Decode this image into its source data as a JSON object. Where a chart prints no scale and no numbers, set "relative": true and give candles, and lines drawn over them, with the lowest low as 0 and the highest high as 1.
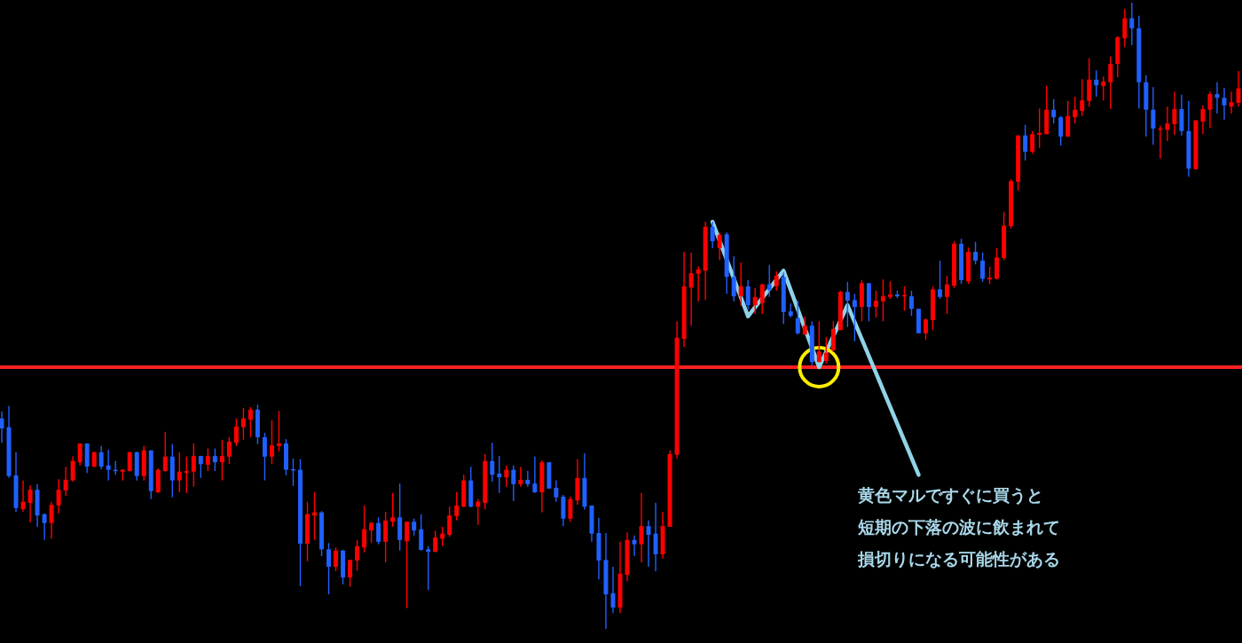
{
  "chart_data": {
    "type": "candlestick",
    "relative": true,
    "categories": [
      null,
      null,
      null,
      null,
      null,
      null,
      null,
      null,
      null,
      null,
      null,
      null,
      null,
      null,
      null,
      null,
      null,
      null,
      null,
      null,
      null,
      null,
      null,
      null,
      null,
      null,
      null,
      null,
      null,
      null,
      null,
      null,
      null,
      null,
      null,
      null,
      null,
      null,
      null,
      null,
      null,
      null,
      null,
      null,
      null,
      null,
      null,
      null,
      null,
      null,
      null,
      null,
      null,
      null,
      null,
      null,
      null,
      null,
      null,
      null,
      null,
      null,
      null,
      null,
      null,
      null,
      null,
      null,
      null,
      null,
      null,
      null,
      null,
      null,
      null,
      null,
      null,
      null,
      null,
      null,
      null,
      null,
      null,
      null,
      null,
      null,
      null,
      null,
      null,
      null,
      null,
      null,
      null,
      null,
      null,
      null,
      null,
      null,
      null,
      null,
      null,
      null,
      null,
      null,
      null,
      null,
      null,
      null,
      null,
      null,
      null,
      null,
      null,
      null,
      null,
      null,
      null,
      null,
      null,
      null,
      null,
      null,
      null,
      null,
      null,
      null,
      null,
      null,
      null,
      null,
      null,
      null,
      null,
      null,
      null,
      null,
      null,
      null,
      null,
      null,
      null,
      null,
      null,
      null,
      null,
      null,
      null,
      null,
      null,
      null,
      null,
      null,
      null,
      null,
      null,
      null,
      null,
      null,
      null,
      null,
      null,
      null,
      null,
      null,
      null,
      null,
      null,
      null,
      null,
      null,
      null,
      null,
      null,
      null,
      null
    ],
    "ohlc": [
      [
        0.336,
        0.347,
        0.297,
        0.32
      ],
      [
        0.322,
        0.356,
        0.241,
        0.244
      ],
      [
        0.245,
        0.282,
        0.187,
        0.193
      ],
      [
        0.191,
        0.237,
        0.187,
        0.203
      ],
      [
        0.201,
        0.229,
        0.17,
        0.222
      ],
      [
        0.222,
        0.231,
        0.163,
        0.181
      ],
      [
        0.183,
        0.184,
        0.142,
        0.169
      ],
      [
        0.169,
        0.203,
        0.144,
        0.198
      ],
      [
        0.197,
        0.239,
        0.184,
        0.222
      ],
      [
        0.221,
        0.259,
        0.212,
        0.238
      ],
      [
        0.237,
        0.275,
        0.235,
        0.268
      ],
      [
        0.266,
        0.296,
        0.261,
        0.296
      ],
      [
        0.296,
        0.296,
        0.249,
        0.259
      ],
      [
        0.259,
        0.283,
        0.258,
        0.282
      ],
      [
        0.282,
        0.292,
        0.255,
        0.259
      ],
      [
        0.261,
        0.286,
        0.237,
        0.254
      ],
      [
        0.254,
        0.268,
        0.246,
        0.252
      ],
      [
        0.251,
        0.255,
        0.237,
        0.254
      ],
      [
        0.252,
        0.283,
        0.251,
        0.282
      ],
      [
        0.282,
        0.283,
        0.237,
        0.244
      ],
      [
        0.244,
        0.292,
        0.237,
        0.285
      ],
      [
        0.285,
        0.285,
        0.207,
        0.22
      ],
      [
        0.218,
        0.256,
        0.217,
        0.254
      ],
      [
        0.252,
        0.314,
        0.251,
        0.275
      ],
      [
        0.275,
        0.295,
        0.21,
        0.237
      ],
      [
        0.237,
        0.282,
        0.218,
        0.251
      ],
      [
        0.249,
        0.275,
        0.217,
        0.252
      ],
      [
        0.251,
        0.296,
        0.227,
        0.276
      ],
      [
        0.276,
        0.276,
        0.241,
        0.263
      ],
      [
        0.262,
        0.288,
        0.252,
        0.276
      ],
      [
        0.276,
        0.288,
        0.252,
        0.266
      ],
      [
        0.266,
        0.302,
        0.237,
        0.276
      ],
      [
        0.275,
        0.306,
        0.263,
        0.299
      ],
      [
        0.297,
        0.336,
        0.292,
        0.323
      ],
      [
        0.322,
        0.353,
        0.302,
        0.336
      ],
      [
        0.334,
        0.354,
        0.306,
        0.35
      ],
      [
        0.35,
        0.358,
        0.295,
        0.306
      ],
      [
        0.306,
        0.313,
        0.237,
        0.275
      ],
      [
        0.275,
        0.333,
        0.263,
        0.293
      ],
      [
        0.292,
        0.348,
        0.283,
        0.296
      ],
      [
        0.296,
        0.303,
        0.245,
        0.254
      ],
      [
        0.255,
        0.272,
        0.228,
        0.254
      ],
      [
        0.254,
        0.271,
        0.068,
        0.136
      ],
      [
        0.136,
        0.203,
        0.108,
        0.183
      ],
      [
        0.181,
        0.218,
        0.142,
        0.186
      ],
      [
        0.186,
        0.188,
        0.116,
        0.127
      ],
      [
        0.127,
        0.137,
        0.055,
        0.099
      ],
      [
        0.099,
        0.13,
        0.092,
        0.125
      ],
      [
        0.125,
        0.126,
        0.071,
        0.082
      ],
      [
        0.082,
        0.11,
        0.067,
        0.11
      ],
      [
        0.109,
        0.142,
        0.093,
        0.132
      ],
      [
        0.13,
        0.197,
        0.122,
        0.159
      ],
      [
        0.157,
        0.171,
        0.137,
        0.169
      ],
      [
        0.169,
        0.178,
        0.135,
        0.139
      ],
      [
        0.139,
        0.187,
        0.106,
        0.173
      ],
      [
        0.171,
        0.217,
        0.163,
        0.178
      ],
      [
        0.178,
        0.232,
        0.125,
        0.142
      ],
      [
        0.14,
        0.171,
        0.033,
        0.171
      ],
      [
        0.171,
        0.176,
        0.149,
        0.157
      ],
      [
        0.159,
        0.183,
        0.125,
        0.126
      ],
      [
        0.127,
        0.132,
        0.062,
        0.123
      ],
      [
        0.123,
        0.157,
        0.122,
        0.146
      ],
      [
        0.144,
        0.163,
        0.132,
        0.152
      ],
      [
        0.15,
        0.195,
        0.147,
        0.181
      ],
      [
        0.18,
        0.218,
        0.173,
        0.197
      ],
      [
        0.195,
        0.246,
        0.194,
        0.237
      ],
      [
        0.237,
        0.259,
        0.194,
        0.195
      ],
      [
        0.195,
        0.207,
        0.166,
        0.203
      ],
      [
        0.201,
        0.279,
        0.191,
        0.268
      ],
      [
        0.268,
        0.297,
        0.235,
        0.246
      ],
      [
        0.248,
        0.276,
        0.217,
        0.242
      ],
      [
        0.242,
        0.261,
        0.227,
        0.254
      ],
      [
        0.254,
        0.261,
        0.204,
        0.231
      ],
      [
        0.231,
        0.259,
        0.227,
        0.238
      ],
      [
        0.238,
        0.252,
        0.227,
        0.231
      ],
      [
        0.232,
        0.275,
        0.217,
        0.218
      ],
      [
        0.218,
        0.269,
        0.186,
        0.266
      ],
      [
        0.266,
        0.266,
        0.224,
        0.224
      ],
      [
        0.225,
        0.237,
        0.203,
        0.21
      ],
      [
        0.211,
        0.214,
        0.164,
        0.176
      ],
      [
        0.176,
        0.211,
        0.171,
        0.207
      ],
      [
        0.205,
        0.271,
        0.198,
        0.241
      ],
      [
        0.241,
        0.28,
        0.19,
        0.195
      ],
      [
        0.197,
        0.197,
        0.139,
        0.152
      ],
      [
        0.153,
        0.177,
        0.079,
        0.109
      ],
      [
        0.11,
        0.153,
        0.0,
        0.055
      ],
      [
        0.057,
        0.099,
        0.025,
        0.034
      ],
      [
        0.034,
        0.139,
        0.025,
        0.088
      ],
      [
        0.086,
        0.154,
        0.076,
        0.142
      ],
      [
        0.142,
        0.149,
        0.116,
        0.135
      ],
      [
        0.135,
        0.217,
        0.106,
        0.164
      ],
      [
        0.164,
        0.173,
        0.099,
        0.15
      ],
      [
        0.152,
        0.201,
        0.092,
        0.119
      ],
      [
        0.119,
        0.187,
        0.112,
        0.164
      ],
      [
        0.163,
        0.285,
        0.163,
        0.279
      ],
      [
        0.278,
        0.491,
        0.272,
        0.465
      ],
      [
        0.463,
        0.602,
        0.45,
        0.547
      ],
      [
        0.545,
        0.601,
        0.484,
        0.568
      ],
      [
        0.567,
        0.579,
        0.523,
        0.574
      ],
      [
        0.572,
        0.65,
        0.525,
        0.642
      ],
      [
        0.642,
        0.65,
        0.608,
        0.619
      ],
      [
        0.608,
        0.633,
        0.589,
        0.629
      ],
      [
        0.63,
        0.633,
        0.535,
        0.562
      ],
      [
        0.562,
        0.595,
        0.523,
        0.531
      ],
      [
        0.531,
        0.585,
        0.516,
        0.547
      ],
      [
        0.547,
        0.557,
        0.51,
        0.517
      ],
      [
        0.517,
        0.544,
        0.503,
        0.53
      ],
      [
        0.52,
        0.551,
        0.503,
        0.55
      ],
      [
        0.55,
        0.581,
        0.53,
        0.541
      ],
      [
        0.547,
        0.571,
        0.54,
        0.564
      ],
      [
        0.562,
        0.569,
        0.487,
        0.506
      ],
      [
        0.507,
        0.52,
        0.497,
        0.5
      ],
      [
        0.496,
        0.524,
        0.47,
        0.472
      ],
      [
        0.47,
        0.499,
        0.47,
        0.484
      ],
      [
        0.484,
        0.491,
        0.421,
        0.426
      ],
      [
        0.426,
        0.491,
        0.426,
        0.443
      ],
      [
        0.428,
        0.466,
        0.424,
        0.441
      ],
      [
        0.445,
        0.491,
        0.442,
        0.479
      ],
      [
        0.477,
        0.54,
        0.477,
        0.538
      ],
      [
        0.538,
        0.554,
        0.482,
        0.524
      ],
      [
        0.525,
        0.535,
        0.459,
        0.514
      ],
      [
        0.514,
        0.557,
        0.491,
        0.552
      ],
      [
        0.552,
        0.552,
        0.491,
        0.514
      ],
      [
        0.514,
        0.54,
        0.497,
        0.524
      ],
      [
        0.523,
        0.558,
        0.491,
        0.531
      ],
      [
        0.53,
        0.555,
        0.527,
        0.534
      ],
      [
        0.534,
        0.54,
        0.528,
        0.531
      ],
      [
        0.531,
        0.547,
        0.508,
        0.533
      ],
      [
        0.531,
        0.54,
        0.5,
        0.511
      ],
      [
        0.511,
        0.511,
        0.472,
        0.472
      ],
      [
        0.472,
        0.496,
        0.462,
        0.494
      ],
      [
        0.493,
        0.547,
        0.477,
        0.542
      ],
      [
        0.542,
        0.588,
        0.527,
        0.53
      ],
      [
        0.53,
        0.564,
        0.503,
        0.55
      ],
      [
        0.548,
        0.619,
        0.544,
        0.615
      ],
      [
        0.615,
        0.623,
        0.551,
        0.557
      ],
      [
        0.555,
        0.609,
        0.551,
        0.602
      ],
      [
        0.602,
        0.618,
        0.582,
        0.588
      ],
      [
        0.588,
        0.601,
        0.554,
        0.559
      ],
      [
        0.558,
        0.578,
        0.551,
        0.561
      ],
      [
        0.559,
        0.608,
        0.558,
        0.593
      ],
      [
        0.592,
        0.666,
        0.589,
        0.644
      ],
      [
        0.643,
        0.718,
        0.639,
        0.715
      ],
      [
        0.714,
        0.788,
        0.7,
        0.788
      ],
      [
        0.788,
        0.805,
        0.748,
        0.762
      ],
      [
        0.762,
        0.795,
        0.759,
        0.79
      ],
      [
        0.789,
        0.831,
        0.768,
        0.792
      ],
      [
        0.79,
        0.867,
        0.79,
        0.829
      ],
      [
        0.829,
        0.846,
        0.807,
        0.817
      ],
      [
        0.817,
        0.819,
        0.772,
        0.786
      ],
      [
        0.786,
        0.843,
        0.786,
        0.819
      ],
      [
        0.817,
        0.85,
        0.807,
        0.829
      ],
      [
        0.827,
        0.878,
        0.819,
        0.844
      ],
      [
        0.843,
        0.911,
        0.834,
        0.877
      ],
      [
        0.877,
        0.892,
        0.85,
        0.868
      ],
      [
        0.867,
        0.882,
        0.844,
        0.874
      ],
      [
        0.873,
        0.914,
        0.83,
        0.902
      ],
      [
        0.902,
        0.946,
        0.881,
        0.945
      ],
      [
        0.943,
        0.99,
        0.929,
        0.975
      ],
      [
        0.975,
        1.0,
        0.932,
        0.959
      ],
      [
        0.959,
        0.979,
        0.831,
        0.873
      ],
      [
        0.873,
        0.884,
        0.786,
        0.829
      ],
      [
        0.829,
        0.865,
        0.773,
        0.799
      ],
      [
        0.797,
        0.803,
        0.751,
        0.799
      ],
      [
        0.797,
        0.834,
        0.779,
        0.807
      ],
      [
        0.806,
        0.858,
        0.789,
        0.83
      ],
      [
        0.83,
        0.853,
        0.788,
        0.795
      ],
      [
        0.795,
        0.843,
        0.722,
        0.735
      ],
      [
        0.734,
        0.812,
        0.734,
        0.812
      ],
      [
        0.81,
        0.836,
        0.79,
        0.83
      ],
      [
        0.829,
        0.858,
        0.8,
        0.854
      ],
      [
        0.854,
        0.873,
        0.823,
        0.848
      ],
      [
        0.848,
        0.864,
        0.813,
        0.836
      ],
      [
        0.834,
        0.858,
        0.823,
        0.841
      ],
      [
        0.84,
        0.891,
        0.834,
        0.863
      ]
    ],
    "colors": [
      "#2060ff",
      "#2060ff",
      "#2060ff",
      "#ff0000",
      "#ff0000",
      "#2060ff",
      "#2060ff",
      "#ff0000",
      "#ff0000",
      "#ff0000",
      "#ff0000",
      "#ff0000",
      "#2060ff",
      "#ff0000",
      "#2060ff",
      "#2060ff",
      "#2060ff",
      "#ff0000",
      "#ff0000",
      "#2060ff",
      "#ff0000",
      "#2060ff",
      "#ff0000",
      "#ff0000",
      "#2060ff",
      "#ff0000",
      "#ff0000",
      "#ff0000",
      "#2060ff",
      "#ff0000",
      "#2060ff",
      "#ff0000",
      "#ff0000",
      "#ff0000",
      "#ff0000",
      "#ff0000",
      "#2060ff",
      "#2060ff",
      "#ff0000",
      "#ff0000",
      "#2060ff",
      "#2060ff",
      "#2060ff",
      "#ff0000",
      "#ff0000",
      "#2060ff",
      "#2060ff",
      "#ff0000",
      "#2060ff",
      "#ff0000",
      "#ff0000",
      "#ff0000",
      "#ff0000",
      "#2060ff",
      "#ff0000",
      "#ff0000",
      "#2060ff",
      "#ff0000",
      "#2060ff",
      "#2060ff",
      "#2060ff",
      "#ff0000",
      "#ff0000",
      "#ff0000",
      "#ff0000",
      "#ff0000",
      "#2060ff",
      "#ff0000",
      "#ff0000",
      "#2060ff",
      "#2060ff",
      "#ff0000",
      "#2060ff",
      "#ff0000",
      "#2060ff",
      "#2060ff",
      "#ff0000",
      "#2060ff",
      "#2060ff",
      "#2060ff",
      "#ff0000",
      "#ff0000",
      "#2060ff",
      "#2060ff",
      "#2060ff",
      "#2060ff",
      "#2060ff",
      "#ff0000",
      "#ff0000",
      "#2060ff",
      "#ff0000",
      "#2060ff",
      "#2060ff",
      "#ff0000",
      "#ff0000",
      "#ff0000",
      "#ff0000",
      "#ff0000",
      "#ff0000",
      "#ff0000",
      "#2060ff",
      "#ff0000",
      "#2060ff",
      "#2060ff",
      "#ff0000",
      "#2060ff",
      "#ff0000",
      "#ff0000",
      "#2060ff",
      "#ff0000",
      "#2060ff",
      "#2060ff",
      "#2060ff",
      "#ff0000",
      "#2060ff",
      "#ff0000",
      "#ff0000",
      "#ff0000",
      "#ff0000",
      "#2060ff",
      "#2060ff",
      "#ff0000",
      "#2060ff",
      "#ff0000",
      "#ff0000",
      "#ff0000",
      "#2060ff",
      "#ff0000",
      "#2060ff",
      "#2060ff",
      "#ff0000",
      "#ff0000",
      "#2060ff",
      "#ff0000",
      "#ff0000",
      "#2060ff",
      "#ff0000",
      "#2060ff",
      "#2060ff",
      "#ff0000",
      "#ff0000",
      "#ff0000",
      "#ff0000",
      "#ff0000",
      "#2060ff",
      "#ff0000",
      "#ff0000",
      "#ff0000",
      "#2060ff",
      "#2060ff",
      "#ff0000",
      "#ff0000",
      "#ff0000",
      "#ff0000",
      "#2060ff",
      "#ff0000",
      "#ff0000",
      "#ff0000",
      "#ff0000",
      "#2060ff",
      "#2060ff",
      "#2060ff",
      "#2060ff",
      "#ff0000",
      "#ff0000",
      "#ff0000",
      "#2060ff",
      "#2060ff",
      "#ff0000",
      "#ff0000",
      "#ff0000",
      "#2060ff",
      "#2060ff",
      "#ff0000",
      "#ff0000"
    ],
    "series": [
      {
        "type": "line",
        "color": "#8fd3e8",
        "values": [
          null,
          null,
          null,
          null,
          null,
          null,
          null,
          null,
          null,
          null,
          null,
          null,
          null,
          null,
          null,
          null,
          null,
          null,
          null,
          null,
          null,
          null,
          null,
          null,
          null,
          null,
          null,
          null,
          null,
          null,
          null,
          null,
          null,
          null,
          null,
          null,
          null,
          null,
          null,
          null,
          null,
          null,
          null,
          null,
          null,
          null,
          null,
          null,
          null,
          null,
          null,
          null,
          null,
          null,
          null,
          null,
          null,
          null,
          null,
          null,
          null,
          null,
          null,
          null,
          null,
          null,
          null,
          null,
          null,
          null,
          null,
          null,
          null,
          null,
          null,
          null,
          null,
          null,
          null,
          null,
          null,
          null,
          null,
          null,
          null,
          null,
          null,
          null,
          null,
          null,
          null,
          null,
          null,
          null,
          null,
          null,
          null,
          null,
          null,
          null,
          0.65,
          null,
          null,
          null,
          null,
          0.499,
          null,
          null,
          null,
          null,
          0.572,
          null,
          null,
          null,
          null,
          0.418,
          null,
          null,
          null,
          0.517,
          null,
          null,
          null,
          null,
          null,
          null,
          null,
          null,
          null,
          0.246,
          null,
          null,
          null,
          null,
          null,
          null,
          null,
          null,
          null,
          null,
          null,
          null,
          null,
          null,
          null,
          null,
          null,
          null,
          null,
          null,
          null,
          null,
          null,
          null,
          null,
          null,
          null,
          null,
          null,
          null,
          null,
          null,
          null,
          null,
          null,
          null,
          null,
          null,
          null,
          null,
          null,
          null,
          null,
          null,
          null
        ]
      },
      {
        "type": "scatter",
        "color": "#ffee00",
        "marker": "circle",
        "values": [
          null,
          null,
          null,
          null,
          null,
          null,
          null,
          null,
          null,
          null,
          null,
          null,
          null,
          null,
          null,
          null,
          null,
          null,
          null,
          null,
          null,
          null,
          null,
          null,
          null,
          null,
          null,
          null,
          null,
          null,
          null,
          null,
          null,
          null,
          null,
          null,
          null,
          null,
          null,
          null,
          null,
          null,
          null,
          null,
          null,
          null,
          null,
          null,
          null,
          null,
          null,
          null,
          null,
          null,
          null,
          null,
          null,
          null,
          null,
          null,
          null,
          null,
          null,
          null,
          null,
          null,
          null,
          null,
          null,
          null,
          null,
          null,
          null,
          null,
          null,
          null,
          null,
          null,
          null,
          null,
          null,
          null,
          null,
          null,
          null,
          null,
          null,
          null,
          null,
          null,
          null,
          null,
          null,
          null,
          null,
          null,
          null,
          null,
          null,
          null,
          null,
          null,
          null,
          null,
          null,
          null,
          null,
          null,
          null,
          null,
          null,
          null,
          null,
          null,
          null,
          0.418,
          null,
          null,
          null,
          null,
          null,
          null,
          null,
          null,
          null,
          null,
          null,
          null,
          null,
          null,
          null,
          null,
          null,
          null,
          null,
          null,
          null,
          null,
          null,
          null,
          null,
          null,
          null,
          null,
          null,
          null,
          null,
          null,
          null,
          null,
          null,
          null,
          null,
          null,
          null,
          null,
          null,
          null,
          null,
          null,
          null,
          null,
          null,
          null,
          null,
          null,
          null,
          null,
          null,
          null,
          null,
          null,
          null,
          null,
          null
        ]
      }
    ],
    "ref_lines": [
      {
        "axis": "y",
        "value": 0.418,
        "color": "#ff2020"
      }
    ],
    "annotations": [
      "黄色マルですぐに買うと",
      "短期の下落の波に飲まれて",
      "損切りになる可能性がある"
    ]
  }
}
